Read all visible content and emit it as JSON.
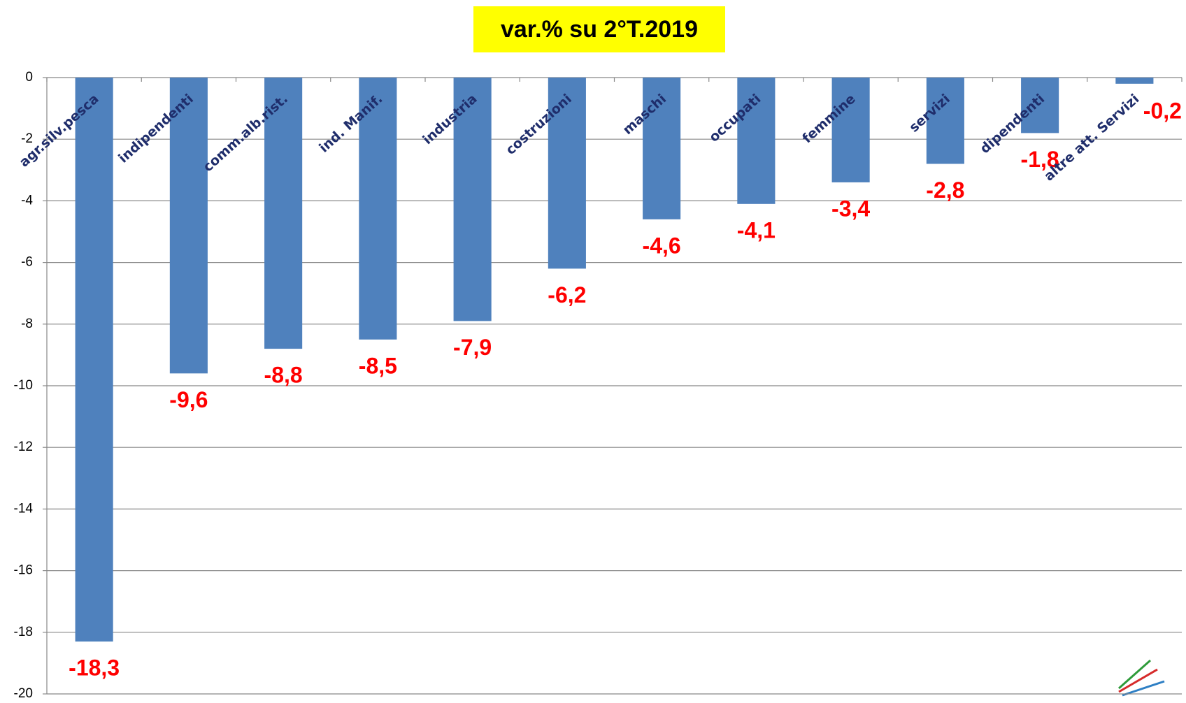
{
  "chart_data": {
    "type": "bar",
    "title": "var.% su 2°T.2019",
    "categories": [
      "agr.silv.pesca",
      "indipendenti",
      "comm.alb.rist.",
      "ind. Manif.",
      "industria",
      "costruzioni",
      "maschi",
      "occupati",
      "femmine",
      "servizi",
      "dipendenti",
      "altre att. Servizi"
    ],
    "values": [
      -18.3,
      -9.6,
      -8.8,
      -8.5,
      -7.9,
      -6.2,
      -4.6,
      -4.1,
      -3.4,
      -2.8,
      -1.8,
      -0.2
    ],
    "value_labels": [
      "-18,3",
      "-9,6",
      "-8,8",
      "-8,5",
      "-7,9",
      "-6,2",
      "-4,6",
      "-4,1",
      "-3,4",
      "-2,8",
      "-1,8",
      "-0,2"
    ],
    "color": "#4f81bd",
    "ylim": [
      -20,
      0
    ],
    "yticks": [
      0,
      -2,
      -4,
      -6,
      -8,
      -10,
      -12,
      -14,
      -16,
      -18,
      -20
    ],
    "grid": true
  }
}
